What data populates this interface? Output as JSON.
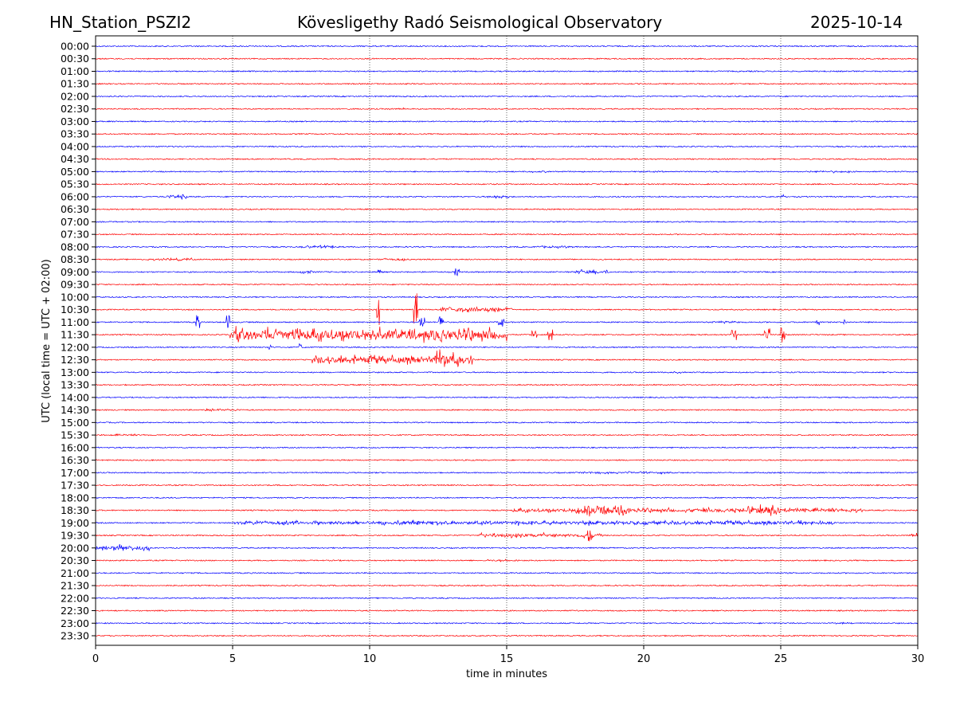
{
  "header": {
    "station": "HN_Station_PSZI2",
    "observatory": "Kövesligethy Radó Seismological Observatory",
    "date": "2025-10-14"
  },
  "chart_data": {
    "type": "line",
    "subtype": "helicorder",
    "title": "Kövesligethy Radó Seismological Observatory",
    "xlabel": "time in minutes",
    "ylabel": "UTC (local time = UTC + 02:00)",
    "xlim": [
      0,
      30
    ],
    "xticks": [
      "0",
      "5",
      "10",
      "15",
      "20",
      "25",
      "30"
    ],
    "xtick_values": [
      0,
      5,
      10,
      15,
      20,
      25,
      30
    ],
    "grid": "vertical dotted at 5-minute intervals",
    "colors": [
      "#0000ff",
      "#ff0000"
    ],
    "rows": [
      "00:00",
      "00:30",
      "01:00",
      "01:30",
      "02:00",
      "02:30",
      "03:00",
      "03:30",
      "04:00",
      "04:30",
      "05:00",
      "05:30",
      "06:00",
      "06:30",
      "07:00",
      "07:30",
      "08:00",
      "08:30",
      "09:00",
      "09:30",
      "10:00",
      "10:30",
      "11:00",
      "11:30",
      "12:00",
      "12:30",
      "13:00",
      "13:30",
      "14:00",
      "14:30",
      "15:00",
      "15:30",
      "16:00",
      "16:30",
      "17:00",
      "17:30",
      "18:00",
      "18:30",
      "19:00",
      "19:30",
      "20:00",
      "20:30",
      "21:00",
      "21:30",
      "22:00",
      "22:30",
      "23:00",
      "23:30"
    ],
    "events": [
      {
        "row": 5,
        "start": 10.7,
        "end": 11.3,
        "amplitude": 1.5
      },
      {
        "row": 10,
        "start": 15.8,
        "end": 16.5,
        "amplitude": 1.5
      },
      {
        "row": 10,
        "start": 19.7,
        "end": 20.7,
        "amplitude": 1.5
      },
      {
        "row": 10,
        "start": 26.0,
        "end": 27.5,
        "amplitude": 1.8
      },
      {
        "row": 12,
        "start": 2.6,
        "end": 3.3,
        "amplitude": 4
      },
      {
        "row": 12,
        "start": 14.3,
        "end": 15.1,
        "amplitude": 2.5
      },
      {
        "row": 12,
        "start": 25.0,
        "end": 25.1,
        "amplitude": 4
      },
      {
        "row": 16,
        "start": 7.5,
        "end": 9.0,
        "amplitude": 2.5
      },
      {
        "row": 16,
        "start": 16.0,
        "end": 17.5,
        "amplitude": 2
      },
      {
        "row": 17,
        "start": 1.8,
        "end": 3.5,
        "amplitude": 2
      },
      {
        "row": 17,
        "start": 10.5,
        "end": 11.3,
        "amplitude": 2.5
      },
      {
        "row": 18,
        "start": 7.5,
        "end": 7.9,
        "amplitude": 4
      },
      {
        "row": 18,
        "start": 10.3,
        "end": 10.4,
        "amplitude": 5
      },
      {
        "row": 18,
        "start": 13.1,
        "end": 13.3,
        "amplitude": 5
      },
      {
        "row": 18,
        "start": 17.5,
        "end": 18.8,
        "amplitude": 4
      },
      {
        "row": 21,
        "start": 10.25,
        "end": 10.35,
        "amplitude": 30
      },
      {
        "row": 21,
        "start": 11.6,
        "end": 11.75,
        "amplitude": 22
      },
      {
        "row": 21,
        "start": 12.6,
        "end": 15.2,
        "amplitude": 5
      },
      {
        "row": 22,
        "start": 3.65,
        "end": 3.8,
        "amplitude": 11
      },
      {
        "row": 22,
        "start": 4.75,
        "end": 4.9,
        "amplitude": 10
      },
      {
        "row": 22,
        "start": 11.8,
        "end": 12.0,
        "amplitude": 6
      },
      {
        "row": 22,
        "start": 12.5,
        "end": 12.7,
        "amplitude": 8
      },
      {
        "row": 22,
        "start": 14.7,
        "end": 14.9,
        "amplitude": 6
      },
      {
        "row": 22,
        "start": 22.5,
        "end": 23.5,
        "amplitude": 2
      },
      {
        "row": 22,
        "start": 26.3,
        "end": 26.4,
        "amplitude": 4
      },
      {
        "row": 22,
        "start": 27.3,
        "end": 27.4,
        "amplitude": 4
      },
      {
        "row": 23,
        "start": 4.9,
        "end": 15.0,
        "amplitude": 12
      },
      {
        "row": 23,
        "start": 15.9,
        "end": 16.1,
        "amplitude": 6
      },
      {
        "row": 23,
        "start": 16.5,
        "end": 16.7,
        "amplitude": 7
      },
      {
        "row": 23,
        "start": 23.2,
        "end": 23.4,
        "amplitude": 7
      },
      {
        "row": 23,
        "start": 24.4,
        "end": 24.6,
        "amplitude": 8
      },
      {
        "row": 23,
        "start": 25.0,
        "end": 25.2,
        "amplitude": 10
      },
      {
        "row": 24,
        "start": 6.3,
        "end": 6.4,
        "amplitude": 4
      },
      {
        "row": 24,
        "start": 7.4,
        "end": 7.5,
        "amplitude": 5
      },
      {
        "row": 25,
        "start": 7.9,
        "end": 13.8,
        "amplitude": 8
      },
      {
        "row": 25,
        "start": 12.4,
        "end": 13.3,
        "amplitude": 16
      },
      {
        "row": 26,
        "start": 20.8,
        "end": 21.5,
        "amplitude": 2
      },
      {
        "row": 29,
        "start": 4.0,
        "end": 5.3,
        "amplitude": 2
      },
      {
        "row": 31,
        "start": 0.7,
        "end": 2.0,
        "amplitude": 1.8
      },
      {
        "row": 34,
        "start": 17.8,
        "end": 21.0,
        "amplitude": 2
      },
      {
        "row": 37,
        "start": 15.2,
        "end": 28.0,
        "amplitude": 4
      },
      {
        "row": 37,
        "start": 17.5,
        "end": 19.5,
        "amplitude": 10
      },
      {
        "row": 37,
        "start": 23.8,
        "end": 25.0,
        "amplitude": 9
      },
      {
        "row": 38,
        "start": 5.0,
        "end": 27.0,
        "amplitude": 4
      },
      {
        "row": 39,
        "start": 14.0,
        "end": 18.5,
        "amplitude": 4
      },
      {
        "row": 39,
        "start": 17.9,
        "end": 18.1,
        "amplitude": 8
      },
      {
        "row": 39,
        "start": 29.7,
        "end": 30.0,
        "amplitude": 3
      },
      {
        "row": 40,
        "start": 0.0,
        "end": 2.0,
        "amplitude": 5
      },
      {
        "row": 41,
        "start": 14.3,
        "end": 15.5,
        "amplitude": 2
      },
      {
        "row": 46,
        "start": 26.8,
        "end": 27.6,
        "amplitude": 1.5
      }
    ]
  }
}
